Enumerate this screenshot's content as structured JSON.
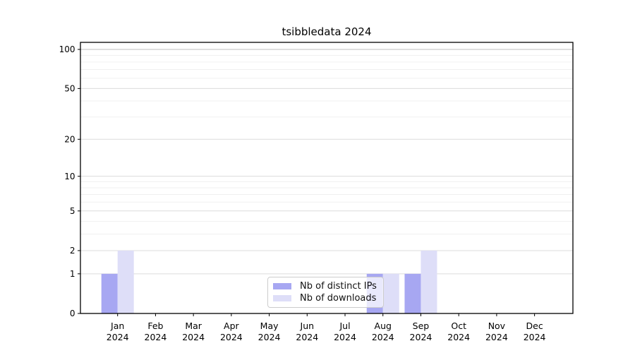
{
  "chart_data": {
    "type": "bar",
    "title": "tsibbledata 2024",
    "categories": [
      "Jan",
      "Feb",
      "Mar",
      "Apr",
      "May",
      "Jun",
      "Jul",
      "Aug",
      "Sep",
      "Oct",
      "Nov",
      "Dec"
    ],
    "year_label": "2024",
    "series": [
      {
        "name": "Nb of distinct IPs",
        "color": "#a7a7f2",
        "values": [
          1,
          0,
          0,
          0,
          0,
          0,
          0,
          1,
          1,
          0,
          0,
          0
        ]
      },
      {
        "name": "Nb of downloads",
        "color": "#dedef8",
        "values": [
          2,
          0,
          0,
          0,
          0,
          0,
          0,
          1,
          2,
          0,
          0,
          0
        ]
      }
    ],
    "xlabel": "",
    "ylabel": "",
    "y_scale": "log1p",
    "ylim": [
      0,
      113
    ],
    "y_ticks": [
      0,
      1,
      2,
      5,
      10,
      20,
      50,
      100
    ],
    "y_minor_gridlines": [
      3,
      4,
      6,
      7,
      8,
      9,
      30,
      40,
      60,
      70,
      80,
      90
    ],
    "grid": true,
    "legend": {
      "position": "lower-center"
    },
    "style": {
      "top_grid": "#bfbfbf",
      "major_grid": "#dcdcdc",
      "minor_grid": "#f0f0f0",
      "axis_color": "#000000",
      "text_color": "#000000",
      "legend_border": "#cccccc"
    }
  }
}
